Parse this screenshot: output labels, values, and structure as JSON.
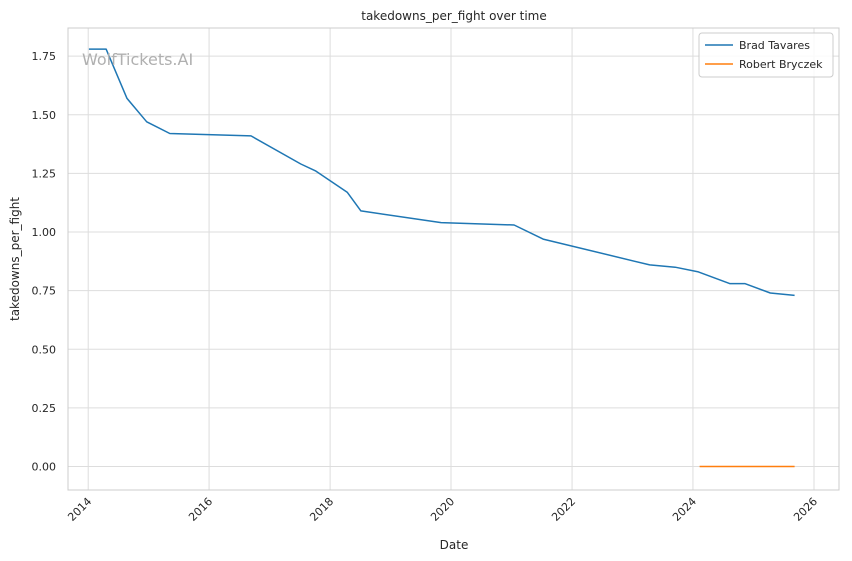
{
  "watermark": "WolfTickets.AI",
  "chart_data": {
    "type": "line",
    "title": "takedowns_per_fight over time",
    "xlabel": "Date",
    "ylabel": "takedowns_per_fight",
    "xlim": [
      "2013-09-01",
      "2026-06-01"
    ],
    "ylim": [
      -0.1,
      1.87
    ],
    "x_ticks": [
      "2014-01-01",
      "2016-01-01",
      "2018-01-01",
      "2020-01-01",
      "2022-01-01",
      "2024-01-01",
      "2026-01-01"
    ],
    "x_tick_labels": [
      "2014",
      "2016",
      "2018",
      "2020",
      "2022",
      "2024",
      "2026"
    ],
    "y_ticks": [
      0,
      0.25,
      0.5,
      0.75,
      1.0,
      1.25,
      1.5,
      1.75
    ],
    "y_tick_labels": [
      "0.00",
      "0.25",
      "0.50",
      "0.75",
      "1.00",
      "1.25",
      "1.50",
      "1.75"
    ],
    "grid": true,
    "legend": "top-right",
    "series": [
      {
        "name": "Brad Tavares",
        "color": "#1f77b4",
        "points": [
          [
            "2014-01-05",
            1.78
          ],
          [
            "2014-04-19",
            1.78
          ],
          [
            "2014-08-23",
            1.57
          ],
          [
            "2014-12-20",
            1.47
          ],
          [
            "2015-05-09",
            1.42
          ],
          [
            "2016-09-10",
            1.41
          ],
          [
            "2017-07-08",
            1.29
          ],
          [
            "2017-10-07",
            1.26
          ],
          [
            "2018-04-14",
            1.17
          ],
          [
            "2018-07-06",
            1.09
          ],
          [
            "2019-11-02",
            1.04
          ],
          [
            "2021-01-16",
            1.03
          ],
          [
            "2021-07-10",
            0.97
          ],
          [
            "2023-04-15",
            0.86
          ],
          [
            "2023-09-16",
            0.85
          ],
          [
            "2024-02-03",
            0.83
          ],
          [
            "2024-08-10",
            0.78
          ],
          [
            "2024-11-09",
            0.78
          ],
          [
            "2025-04-12",
            0.74
          ],
          [
            "2025-09-06",
            0.73
          ]
        ]
      },
      {
        "name": "Robert Bryczek",
        "color": "#ff7f0e",
        "points": [
          [
            "2024-02-10",
            0.0
          ],
          [
            "2025-09-06",
            0.0
          ]
        ]
      }
    ]
  }
}
